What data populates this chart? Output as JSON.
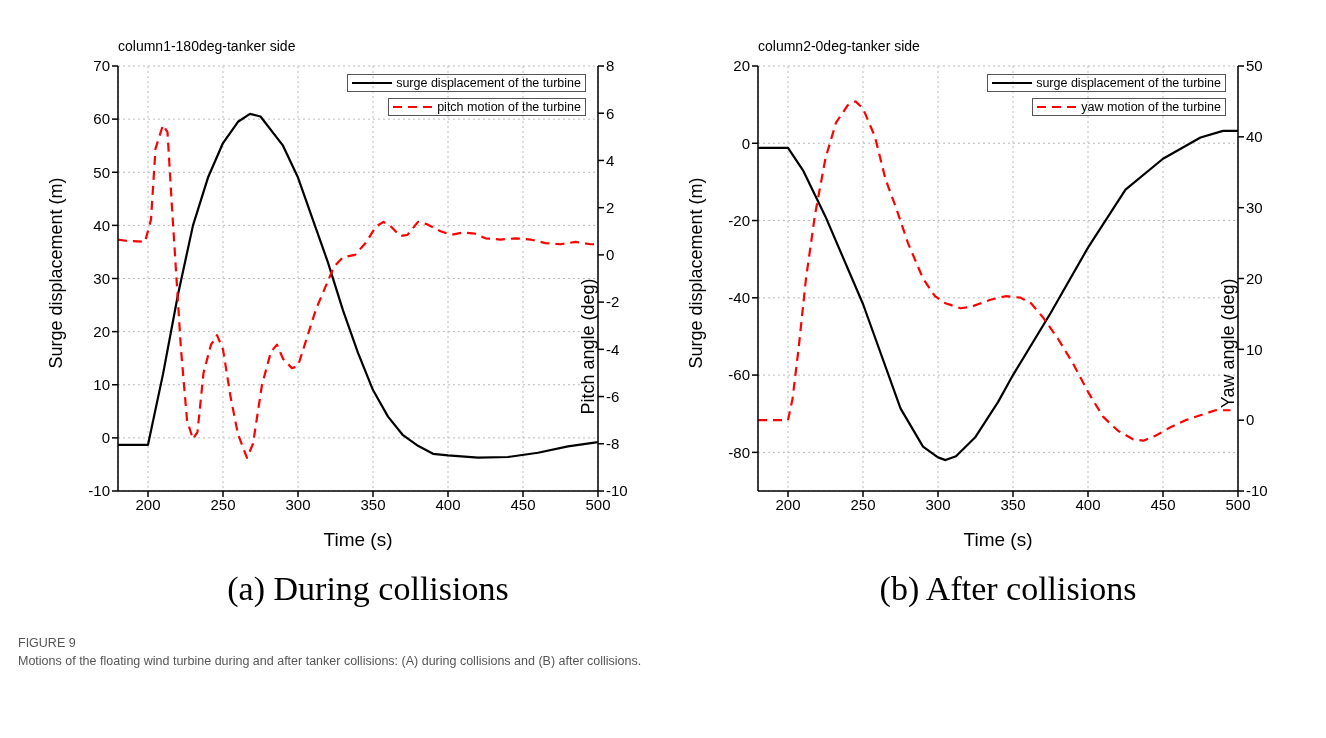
{
  "chart_data": [
    {
      "type": "line",
      "title": "column1-180deg-tanker side",
      "xlabel": "Time (s)",
      "ylabel": "Surge displacement (m)",
      "y2label": "Pitch angle (deg)",
      "xlim": [
        180,
        500
      ],
      "xticks": [
        200,
        250,
        300,
        350,
        400,
        450,
        500
      ],
      "ylim": [
        -10,
        70
      ],
      "yticks": [
        -10,
        0,
        10,
        20,
        30,
        40,
        50,
        60,
        70
      ],
      "y2lim": [
        -10,
        8
      ],
      "y2ticks": [
        -10,
        -8,
        -6,
        -4,
        -2,
        0,
        2,
        4,
        6,
        8
      ],
      "grid": true,
      "legend": "top right",
      "annotations": [
        "(a) During collisions",
        "FIGURE 9",
        "Motions of the floating wind turbine during and after tanker collisions: (A) during collisions and (B) after collisions."
      ],
      "series": [
        {
          "name": "surge displacement of the turbine",
          "color": "#000000",
          "line_style": "solid",
          "x": [
            180,
            200,
            210,
            220,
            230,
            240,
            250,
            260,
            268,
            275,
            290,
            300,
            310,
            320,
            330,
            340,
            350,
            360,
            370,
            380,
            390,
            400,
            420,
            440,
            460,
            480,
            500
          ],
          "values": [
            -1.3,
            -1.3,
            12,
            27,
            40,
            49,
            55.5,
            59.5,
            61,
            60.5,
            55,
            49,
            41,
            33,
            24,
            16,
            9,
            4,
            0.5,
            -1.5,
            -3,
            -3.3,
            -3.7,
            -3.6,
            -2.8,
            -1.6,
            -0.8
          ]
        },
        {
          "name": "pitch motion of the turbine",
          "color": "#ff0000",
          "line_style": "dashed",
          "axis": "y2",
          "x": [
            180,
            185,
            198,
            202,
            205,
            210,
            213,
            216,
            219,
            222,
            226,
            230,
            233,
            237,
            242,
            246,
            250,
            255,
            260,
            266,
            270,
            276,
            282,
            286,
            290,
            296,
            300,
            306,
            312,
            318,
            324,
            330,
            338,
            345,
            352,
            357,
            362,
            368,
            373,
            380,
            386,
            395,
            402,
            410,
            418,
            425,
            435,
            445,
            455,
            465,
            475,
            485,
            495,
            500
          ],
          "values": [
            0.65,
            0.6,
            0.55,
            1.5,
            4.5,
            5.5,
            5.2,
            2,
            -1,
            -4,
            -7,
            -7.8,
            -7.5,
            -5,
            -3.8,
            -3.4,
            -4,
            -6,
            -7.6,
            -8.6,
            -8,
            -5.5,
            -4.1,
            -3.8,
            -4.4,
            -4.8,
            -4.7,
            -3.5,
            -2.3,
            -1.4,
            -0.5,
            -0.1,
            0,
            0.5,
            1.2,
            1.4,
            1.2,
            0.8,
            0.85,
            1.4,
            1.3,
            1,
            0.85,
            0.95,
            0.9,
            0.7,
            0.65,
            0.7,
            0.65,
            0.5,
            0.45,
            0.55,
            0.45,
            0.45
          ]
        }
      ]
    },
    {
      "type": "line",
      "title": "column2-0deg-tanker side",
      "xlabel": "Time (s)",
      "ylabel": "Surge displacement (m)",
      "y2label": "Yaw angle (deg)",
      "xlim": [
        180,
        500
      ],
      "xticks": [
        200,
        250,
        300,
        350,
        400,
        450,
        500
      ],
      "ylim": [
        -90,
        20
      ],
      "yticks": [
        -80,
        -60,
        -40,
        -20,
        0,
        20
      ],
      "y2lim": [
        -10,
        50
      ],
      "y2ticks": [
        -10,
        0,
        10,
        20,
        30,
        40,
        50
      ],
      "grid": true,
      "legend": "top right",
      "annotations": [
        "(b) After collisions"
      ],
      "series": [
        {
          "name": "surge displacement of the turbine",
          "color": "#000000",
          "line_style": "solid",
          "x": [
            180,
            200,
            210,
            225,
            250,
            275,
            290,
            300,
            305,
            312,
            325,
            340,
            350,
            375,
            400,
            425,
            450,
            475,
            490,
            500
          ],
          "values": [
            -1.2,
            -1.2,
            -7,
            -19,
            -41.6,
            -68.6,
            -78.5,
            -81.3,
            -82,
            -81,
            -76,
            -67,
            -60,
            -44,
            -27,
            -12,
            -4,
            1.5,
            3.2,
            3.2
          ]
        },
        {
          "name": "yaw motion of the turbine",
          "color": "#ff0000",
          "line_style": "dashed",
          "axis": "y2",
          "x": [
            180,
            200,
            203,
            207,
            212,
            218,
            225,
            232,
            240,
            245,
            250,
            258,
            265,
            272,
            280,
            290,
            298,
            305,
            315,
            322,
            335,
            345,
            355,
            362,
            370,
            380,
            390,
            400,
            410,
            420,
            430,
            437,
            445,
            455,
            465,
            475,
            485,
            495
          ],
          "values": [
            0,
            0,
            3,
            10,
            20,
            29,
            37,
            42,
            44.5,
            45,
            44,
            40,
            34,
            30,
            25,
            20,
            17.5,
            16.5,
            15.8,
            16,
            17,
            17.5,
            17.3,
            16.5,
            14.5,
            11.5,
            8,
            4,
            0.5,
            -1.5,
            -2.7,
            -2.9,
            -2.2,
            -1,
            0,
            0.7,
            1.4,
            1.4
          ]
        }
      ]
    }
  ]
}
